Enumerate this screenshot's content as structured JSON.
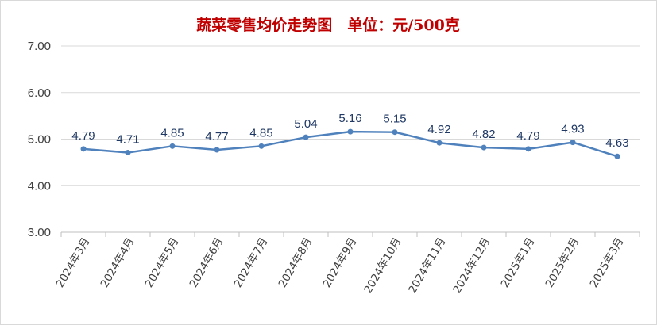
{
  "chart_data": {
    "type": "line",
    "title": "蔬菜零售均价走势图　单位：元/500克",
    "xlabel": "",
    "ylabel": "",
    "categories": [
      "2024年3月",
      "2024年4月",
      "2024年5月",
      "2024年6月",
      "2024年7月",
      "2024年8月",
      "2024年9月",
      "2024年10月",
      "2024年11月",
      "2024年12月",
      "2025年1月",
      "2025年2月",
      "2025年3月"
    ],
    "series": [
      {
        "values": [
          4.79,
          4.71,
          4.85,
          4.77,
          4.85,
          5.04,
          5.16,
          5.15,
          4.92,
          4.82,
          4.79,
          4.93,
          4.63
        ]
      }
    ],
    "yticks": [
      "3.00",
      "4.00",
      "5.00",
      "6.00",
      "7.00"
    ],
    "ylim": [
      3,
      7
    ],
    "grid": true,
    "legend": "none",
    "line_color": "#4f81bd",
    "title_color": "#c00000",
    "label_color": "#1f3864"
  }
}
